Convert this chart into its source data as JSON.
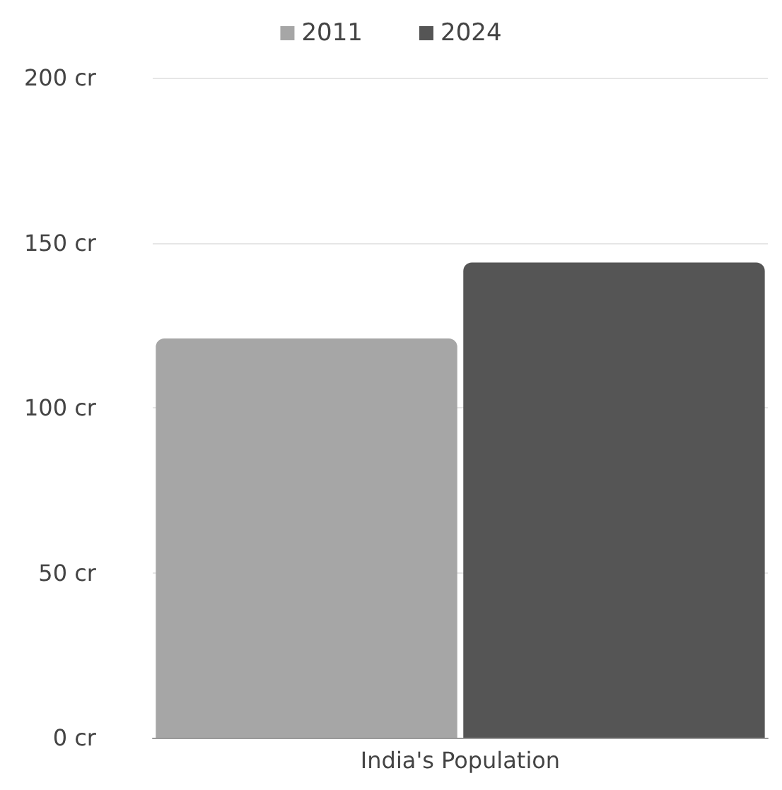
{
  "chart_data": {
    "type": "bar",
    "categories": [
      "India's Population"
    ],
    "series": [
      {
        "name": "2011",
        "color": "#a6a6a6",
        "values": [
          121
        ]
      },
      {
        "name": "2024",
        "color": "#555555",
        "values": [
          144
        ]
      }
    ],
    "ylim": [
      0,
      200
    ],
    "yticks": [
      {
        "value": 0,
        "label": "0 cr"
      },
      {
        "value": 50,
        "label": "50 cr"
      },
      {
        "value": 100,
        "label": "100 cr"
      },
      {
        "value": 150,
        "label": "150 cr"
      },
      {
        "value": 200,
        "label": "200 cr"
      }
    ],
    "grid": "y",
    "legend": "top"
  }
}
